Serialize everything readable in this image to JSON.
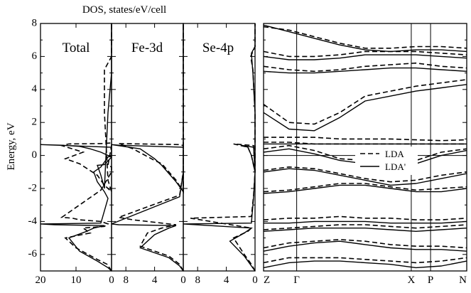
{
  "figure": {
    "dos_title": "DOS, states/eV/cell",
    "ylabel": "Energy, eV"
  },
  "chart_data": [
    {
      "type": "line",
      "panel": "dos",
      "title": "Total",
      "xlabel": "DOS, states/eV/cell",
      "ylabel": "Energy, eV",
      "xlim": [
        20,
        0
      ],
      "ylim": [
        -7,
        8
      ],
      "x_ticks": [
        20,
        10,
        0
      ],
      "y_ticks": [
        -6,
        -4,
        -2,
        0,
        2,
        4,
        6,
        8
      ],
      "series": [
        {
          "name": "LDA",
          "style": "dashed",
          "x": [
            0,
            0.3,
            1.2,
            4,
            10,
            13,
            6,
            8,
            2,
            1,
            3,
            9,
            11,
            14,
            5,
            3,
            0,
            0,
            1,
            0,
            0,
            0,
            3,
            12,
            14,
            8,
            13,
            9,
            4,
            2,
            0,
            1,
            2,
            2,
            0,
            0,
            0
          ],
          "y": [
            -7,
            -6.9,
            -6.6,
            -6.3,
            -5.6,
            -5.0,
            -4.7,
            -4.4,
            -4.3,
            -4.15,
            -4.0,
            -3.9,
            -3.8,
            -3.75,
            -2.4,
            -2.1,
            -1.0,
            -0.7,
            -0.6,
            0.6,
            0.7,
            0.76,
            0.72,
            0.7,
            0.6,
            0.2,
            -0.2,
            -0.5,
            -1.2,
            -1.8,
            -2.2,
            -1.5,
            2.6,
            5.2,
            6.0,
            6.5,
            8
          ]
        },
        {
          "name": "LDA'",
          "style": "solid",
          "x": [
            0,
            1,
            4,
            9,
            12,
            7,
            5,
            3,
            2,
            16,
            20,
            3,
            1,
            2,
            4,
            5,
            3,
            2,
            1,
            0,
            0,
            20,
            14,
            9,
            6,
            3,
            0,
            2,
            4,
            3,
            2,
            1,
            0,
            0,
            0
          ],
          "y": [
            -7,
            -6.8,
            -6.4,
            -5.8,
            -5.0,
            -4.6,
            -4.4,
            -4.3,
            -4.25,
            -4.2,
            -4.15,
            -4.1,
            -2.6,
            -2.2,
            -1.6,
            -1.0,
            -0.7,
            -0.4,
            -0.1,
            0.0,
            0.5,
            0.66,
            0.62,
            0.55,
            0.4,
            0.2,
            -0.1,
            -0.55,
            -0.6,
            -1.2,
            -2.0,
            2.6,
            5.0,
            6.5,
            8
          ]
        }
      ]
    },
    {
      "type": "line",
      "panel": "dos",
      "title": "Fe-3d",
      "xlim": [
        10,
        0
      ],
      "ylim": [
        -7,
        8
      ],
      "x_ticks": [
        8,
        4,
        0
      ],
      "series": [
        {
          "name": "LDA",
          "style": "dashed",
          "x": [
            0,
            0.5,
            2,
            6,
            5,
            3,
            1,
            7,
            9,
            0.5,
            0,
            0,
            0.5,
            9,
            7,
            4,
            3,
            1,
            0,
            0,
            0
          ],
          "y": [
            -7,
            -6.6,
            -6.1,
            -5.5,
            -4.7,
            -4.4,
            -4.2,
            -3.9,
            -3.75,
            -2.4,
            -1.0,
            0.6,
            0.66,
            0.72,
            0.4,
            -0.3,
            -0.5,
            -1.5,
            -2.2,
            2.6,
            8
          ]
        },
        {
          "name": "LDA'",
          "style": "solid",
          "x": [
            0,
            0.5,
            2,
            6,
            4,
            2,
            1,
            9,
            10,
            0.5,
            0,
            0,
            9,
            10,
            6,
            4,
            3,
            1,
            0,
            0,
            0
          ],
          "y": [
            -7,
            -6.7,
            -6.2,
            -5.6,
            -4.8,
            -4.4,
            -4.25,
            -4.2,
            -4.15,
            -2.5,
            -1.0,
            0.5,
            0.62,
            0.66,
            0.4,
            -0.2,
            -0.6,
            -1.6,
            -2.2,
            2.6,
            8
          ]
        }
      ]
    },
    {
      "type": "line",
      "panel": "dos",
      "title": "Se-4p",
      "xlim": [
        10,
        0
      ],
      "ylim": [
        -7,
        8
      ],
      "x_ticks": [
        8,
        4,
        0
      ],
      "series": [
        {
          "name": "LDA",
          "style": "dashed",
          "x": [
            0,
            0.5,
            1.5,
            3,
            1,
            0.5,
            9,
            0.5,
            0.2,
            0,
            0.2,
            3,
            1,
            0.5,
            0,
            0,
            0.3,
            0.6,
            0,
            0
          ],
          "y": [
            -7,
            -6.6,
            -6.0,
            -5.0,
            -4.6,
            -4.4,
            -3.8,
            -3.7,
            -2.4,
            -1.0,
            0.6,
            0.7,
            0.5,
            0.0,
            -1.0,
            2.6,
            5.2,
            6.0,
            6.6,
            8
          ]
        },
        {
          "name": "LDA'",
          "style": "solid",
          "x": [
            0,
            0.5,
            1.5,
            3.5,
            1.5,
            0.5,
            10,
            0.5,
            0.2,
            0,
            0.2,
            2,
            1,
            0.5,
            0,
            0,
            0.3,
            0.5,
            0,
            0
          ],
          "y": [
            -7,
            -6.7,
            -6.1,
            -5.2,
            -4.7,
            -4.4,
            -4.15,
            -4.1,
            -2.5,
            -1.0,
            0.5,
            0.62,
            0.5,
            0.0,
            -1.0,
            2.6,
            5.0,
            6.2,
            6.6,
            8
          ]
        }
      ]
    },
    {
      "type": "line",
      "panel": "bands",
      "ylim": [
        -7,
        8
      ],
      "x_ticks": [
        "Z",
        "Γ",
        "X",
        "P",
        "N"
      ],
      "legend": {
        "placement": "right",
        "entries": [
          {
            "name": "LDA",
            "style": "dashed"
          },
          {
            "name": "LDA'",
            "style": "solid"
          }
        ]
      },
      "series_groups": {
        "k_positions": [
          0,
          0.163,
          0.727,
          0.822,
          1
        ],
        "LDA": [
          [
            7.8,
            7.6,
            7.2,
            6.8,
            6.5,
            6.5,
            6.6,
            6.6,
            6.5
          ],
          [
            6.3,
            6.0,
            6.0,
            6.1,
            6.3,
            6.3,
            6.3,
            6.2,
            6.1
          ],
          [
            5.4,
            5.2,
            5.1,
            5.2,
            5.4,
            5.5,
            5.6,
            5.4,
            5.3
          ],
          [
            3.1,
            2.0,
            1.9,
            2.6,
            3.6,
            3.9,
            4.2,
            4.4,
            4.6
          ],
          [
            1.1,
            1.1,
            1.1,
            1.0,
            1.0,
            1.0,
            0.95,
            0.9,
            0.95
          ],
          [
            0.8,
            0.8,
            0.7,
            0.7,
            0.7,
            0.7,
            0.7,
            0.7,
            0.7
          ],
          [
            0.4,
            0.6,
            0.3,
            -0.2,
            -0.3,
            -0.4,
            -0.3,
            0.2,
            0.4
          ],
          [
            -0.9,
            -0.7,
            -0.8,
            -1.1,
            -1.4,
            -1.6,
            -1.5,
            -1.2,
            -1.0
          ],
          [
            -2.2,
            -2.1,
            -1.9,
            -1.7,
            -1.7,
            -1.9,
            -2.1,
            -2.0,
            -1.9
          ],
          [
            -3.9,
            -3.8,
            -3.8,
            -3.7,
            -3.8,
            -3.8,
            -3.9,
            -3.9,
            -3.8
          ],
          [
            -4.5,
            -4.4,
            -4.3,
            -4.2,
            -4.2,
            -4.3,
            -4.4,
            -4.3,
            -4.2
          ],
          [
            -5.6,
            -5.3,
            -5.2,
            -5.1,
            -5.2,
            -5.4,
            -5.5,
            -5.5,
            -5.6
          ],
          [
            -6.5,
            -6.2,
            -6.2,
            -6.2,
            -6.3,
            -6.4,
            -6.5,
            -6.4,
            -6.2
          ]
        ],
        "LDA'": [
          [
            7.9,
            7.5,
            7.1,
            6.7,
            6.4,
            6.3,
            6.4,
            6.4,
            6.3
          ],
          [
            6.0,
            5.8,
            5.8,
            5.9,
            6.1,
            6.1,
            6.1,
            6.0,
            5.9
          ],
          [
            5.1,
            5.0,
            5.0,
            5.1,
            5.2,
            5.3,
            5.3,
            5.2,
            5.1
          ],
          [
            2.6,
            1.6,
            1.5,
            2.3,
            3.3,
            3.6,
            3.9,
            4.1,
            4.3
          ],
          [
            0.7,
            0.7,
            0.7,
            0.7,
            0.7,
            0.7,
            0.7,
            0.7,
            0.7
          ],
          [
            0.2,
            0.4,
            0.1,
            -0.3,
            -0.5,
            -0.6,
            -0.5,
            0.0,
            0.3
          ],
          [
            -1.0,
            -0.8,
            -0.9,
            -1.2,
            -1.5,
            -1.8,
            -1.7,
            -1.4,
            -1.1
          ],
          [
            -2.3,
            -2.2,
            -2.0,
            -1.8,
            -1.8,
            -2.0,
            -2.2,
            -2.2,
            -2.0
          ],
          [
            -4.1,
            -4.1,
            -4.0,
            -4.0,
            -4.0,
            -4.1,
            -4.1,
            -4.1,
            -4.0
          ],
          [
            -4.6,
            -4.5,
            -4.4,
            -4.4,
            -4.4,
            -4.5,
            -4.6,
            -4.5,
            -4.4
          ],
          [
            -5.8,
            -5.5,
            -5.3,
            -5.2,
            -5.4,
            -5.6,
            -5.7,
            -5.7,
            -5.8
          ],
          [
            -6.8,
            -6.5,
            -6.4,
            -6.4,
            -6.5,
            -6.6,
            -6.8,
            -6.7,
            -6.4
          ]
        ]
      }
    }
  ]
}
